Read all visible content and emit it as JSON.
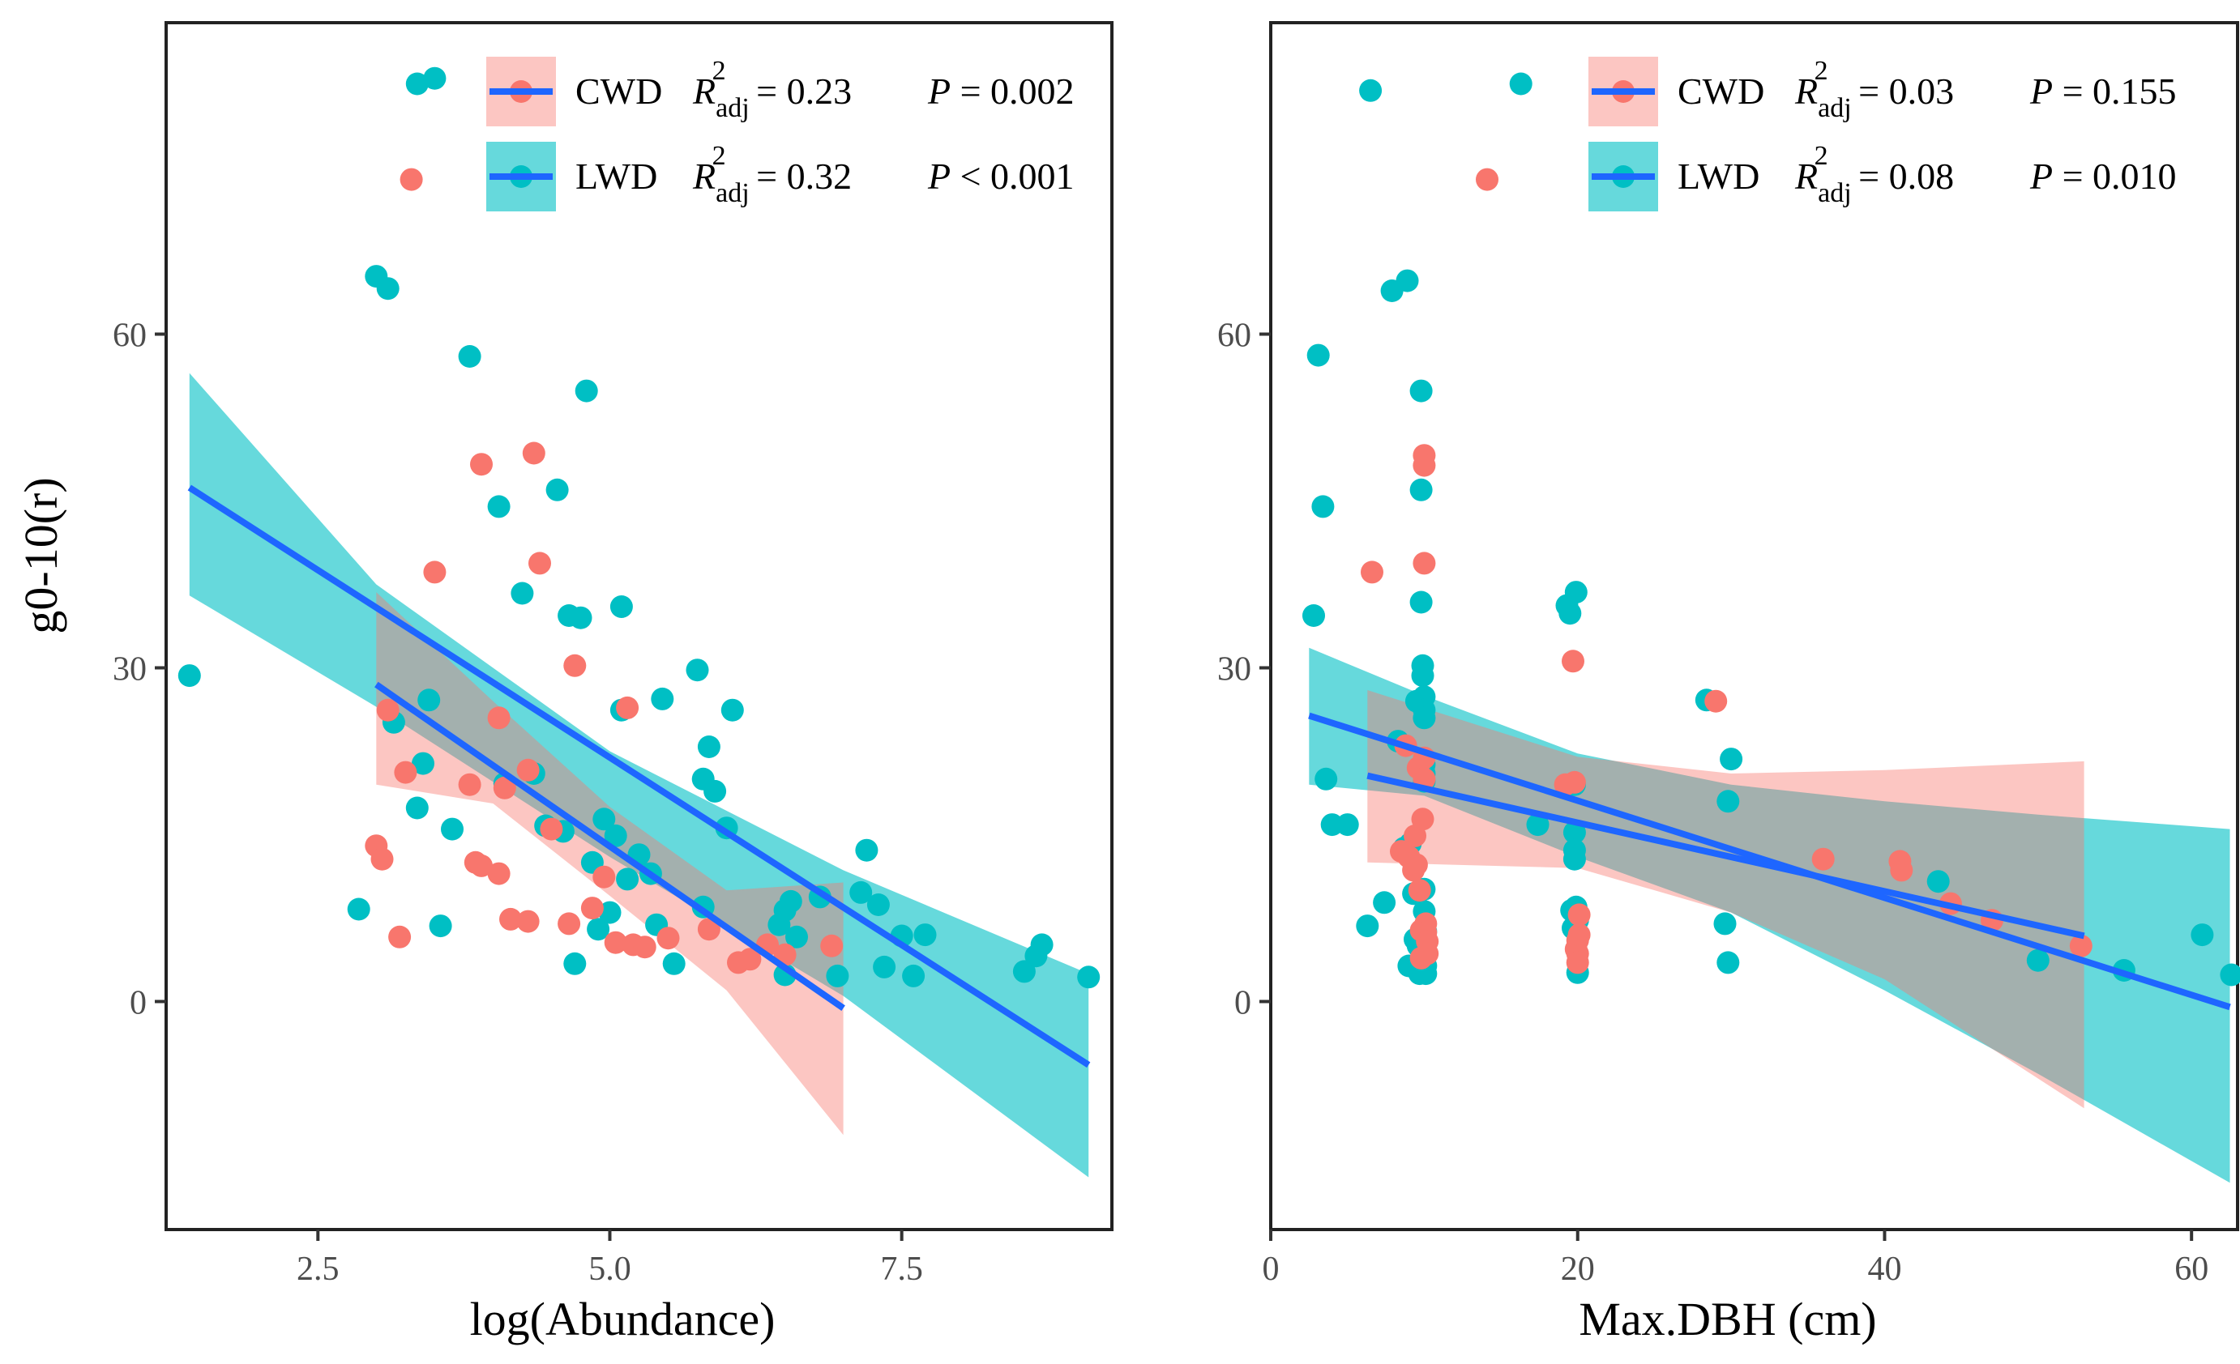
{
  "colors": {
    "cwd_points": "#F8766D",
    "lwd_points": "#00BFC4",
    "cwd_band": "#F8766D",
    "lwd_band": "#00BFC4",
    "fit_line": "#1E66FF",
    "frame": "#222222"
  },
  "y_axis_title": "g0-10(r)",
  "chart_data": [
    {
      "type": "scatter",
      "panel": "left",
      "xlabel": "log(Abundance)",
      "ylabel": "g0-10(r)",
      "xlim": [
        1.2,
        9.3
      ],
      "ylim": [
        -20.5,
        88
      ],
      "x_ticks": [
        2.5,
        5.0,
        7.5
      ],
      "x_tick_labels": [
        "2.5",
        "5.0",
        "7.5"
      ],
      "y_ticks": [
        0,
        30,
        60
      ],
      "y_tick_labels": [
        "0",
        "30",
        "60"
      ],
      "grid": false,
      "legend_position": "top-right",
      "legend": [
        {
          "key": "CWD",
          "label": "CWD",
          "r2_prefix": "R",
          "r2_sub": "adj",
          "r2_sup": "2",
          "r2_value": " = 0.23",
          "p_symbol": "P",
          "p_value": " = 0.002"
        },
        {
          "key": "LWD",
          "label": "LWD",
          "r2_prefix": "R",
          "r2_sub": "adj",
          "r2_sup": "2",
          "r2_value": " = 0.32",
          "p_symbol": "P",
          "p_value": " < 0.001"
        }
      ],
      "series": [
        {
          "name": "LWD",
          "fit": {
            "x": [
              1.4,
              9.1
            ],
            "y": [
              46.2,
              -5.7
            ]
          },
          "band": {
            "x": [
              1.4,
              3.0,
              5.0,
              7.0,
              9.1
            ],
            "upper": [
              56.5,
              37.5,
              22.5,
              11.8,
              2.5
            ],
            "lower": [
              36.5,
              26.5,
              13.0,
              0.5,
              -15.8
            ]
          },
          "points": [
            [
              1.4,
              29.3
            ],
            [
              2.85,
              8.3
            ],
            [
              3.0,
              65.2
            ],
            [
              3.1,
              64.1
            ],
            [
              3.15,
              25.1
            ],
            [
              3.35,
              82.5
            ],
            [
              3.5,
              83.0
            ],
            [
              3.35,
              17.4
            ],
            [
              3.4,
              21.4
            ],
            [
              3.45,
              27.1
            ],
            [
              3.55,
              6.8
            ],
            [
              3.65,
              15.5
            ],
            [
              3.8,
              58.0
            ],
            [
              4.05,
              44.5
            ],
            [
              4.1,
              19.6
            ],
            [
              4.25,
              36.7
            ],
            [
              4.35,
              20.5
            ],
            [
              4.45,
              15.8
            ],
            [
              4.55,
              46.0
            ],
            [
              4.6,
              15.3
            ],
            [
              4.65,
              34.7
            ],
            [
              4.7,
              3.4
            ],
            [
              4.75,
              34.5
            ],
            [
              4.8,
              54.9
            ],
            [
              4.85,
              12.5
            ],
            [
              4.9,
              6.5
            ],
            [
              4.95,
              16.4
            ],
            [
              5.0,
              8.0
            ],
            [
              5.05,
              14.9
            ],
            [
              5.1,
              35.5
            ],
            [
              5.1,
              26.2
            ],
            [
              5.15,
              11.0
            ],
            [
              5.25,
              13.2
            ],
            [
              5.35,
              11.5
            ],
            [
              5.4,
              6.9
            ],
            [
              5.45,
              27.2
            ],
            [
              5.55,
              3.4
            ],
            [
              5.75,
              29.8
            ],
            [
              5.8,
              8.5
            ],
            [
              5.8,
              20.0
            ],
            [
              5.85,
              22.9
            ],
            [
              5.9,
              18.9
            ],
            [
              6.0,
              15.6
            ],
            [
              6.05,
              26.2
            ],
            [
              6.45,
              6.9
            ],
            [
              6.5,
              8.2
            ],
            [
              6.5,
              2.4
            ],
            [
              6.55,
              9.0
            ],
            [
              6.6,
              5.8
            ],
            [
              6.8,
              9.4
            ],
            [
              6.95,
              2.3
            ],
            [
              7.15,
              9.8
            ],
            [
              7.2,
              13.6
            ],
            [
              7.3,
              8.7
            ],
            [
              7.35,
              3.1
            ],
            [
              7.5,
              5.9
            ],
            [
              7.6,
              2.3
            ],
            [
              7.7,
              6.0
            ],
            [
              8.55,
              2.7
            ],
            [
              8.65,
              4.1
            ],
            [
              8.7,
              5.1
            ],
            [
              9.1,
              2.2
            ]
          ]
        },
        {
          "name": "CWD",
          "fit": {
            "x": [
              3.0,
              7.0
            ],
            "y": [
              28.5,
              -0.6
            ]
          },
          "band": {
            "x": [
              3.0,
              4.0,
              5.0,
              6.0,
              7.0
            ],
            "upper": [
              36.8,
              27.0,
              17.5,
              10.0,
              10.7
            ],
            "lower": [
              19.5,
              17.8,
              9.5,
              1.0,
              -12.0
            ]
          },
          "points": [
            [
              3.0,
              14.0
            ],
            [
              3.05,
              12.8
            ],
            [
              3.1,
              26.2
            ],
            [
              3.2,
              5.8
            ],
            [
              3.25,
              20.6
            ],
            [
              3.3,
              73.9
            ],
            [
              3.5,
              38.6
            ],
            [
              3.8,
              19.5
            ],
            [
              3.85,
              12.5
            ],
            [
              3.9,
              48.3
            ],
            [
              3.9,
              12.2
            ],
            [
              4.05,
              11.5
            ],
            [
              4.05,
              25.5
            ],
            [
              4.1,
              19.2
            ],
            [
              4.15,
              7.4
            ],
            [
              4.3,
              7.2
            ],
            [
              4.3,
              20.8
            ],
            [
              4.35,
              49.3
            ],
            [
              4.4,
              39.4
            ],
            [
              4.5,
              15.5
            ],
            [
              4.65,
              7.0
            ],
            [
              4.7,
              30.2
            ],
            [
              4.85,
              8.4
            ],
            [
              4.95,
              11.2
            ],
            [
              5.05,
              5.3
            ],
            [
              5.15,
              26.4
            ],
            [
              5.2,
              5.1
            ],
            [
              5.3,
              4.9
            ],
            [
              5.5,
              5.7
            ],
            [
              5.85,
              6.5
            ],
            [
              6.1,
              3.5
            ],
            [
              6.2,
              3.8
            ],
            [
              6.35,
              5.1
            ],
            [
              6.5,
              4.2
            ],
            [
              6.9,
              5.0
            ]
          ]
        }
      ]
    },
    {
      "type": "scatter",
      "panel": "right",
      "xlabel": "Max.DBH (cm)",
      "ylabel": "g0-10(r)",
      "xlim": [
        0,
        63
      ],
      "ylim": [
        -20.5,
        88
      ],
      "x_ticks": [
        0,
        20,
        40,
        60
      ],
      "x_tick_labels": [
        "0",
        "20",
        "40",
        "60"
      ],
      "y_ticks": [
        0,
        30,
        60
      ],
      "y_tick_labels": [
        "0",
        "30",
        "60"
      ],
      "grid": false,
      "legend_position": "top-right",
      "legend": [
        {
          "key": "CWD",
          "label": "CWD",
          "r2_prefix": "R",
          "r2_sub": "adj",
          "r2_sup": "2",
          "r2_value": " = 0.03",
          "p_symbol": "P",
          "p_value": " = 0.155"
        },
        {
          "key": "LWD",
          "label": "LWD",
          "r2_prefix": "R",
          "r2_sub": "adj",
          "r2_sup": "2",
          "r2_value": " = 0.08",
          "p_symbol": "P",
          "p_value": " = 0.010"
        }
      ],
      "series": [
        {
          "name": "LWD",
          "fit": {
            "x": [
              2.5,
              62.5
            ],
            "y": [
              25.7,
              -0.5
            ]
          },
          "band": {
            "x": [
              2.5,
              10.0,
              20.0,
              30.0,
              40.0,
              50.0,
              62.5
            ],
            "upper": [
              31.8,
              27.5,
              22.3,
              19.5,
              18.0,
              16.8,
              15.5
            ],
            "lower": [
              19.5,
              18.5,
              13.0,
              8.0,
              1.0,
              -6.5,
              -16.3
            ]
          },
          "points": [
            [
              2.8,
              34.7
            ],
            [
              3.1,
              58.1
            ],
            [
              3.4,
              44.5
            ],
            [
              3.6,
              20.0
            ],
            [
              4.0,
              15.9
            ],
            [
              5.0,
              15.9
            ],
            [
              6.3,
              6.8
            ],
            [
              6.5,
              81.9
            ],
            [
              7.4,
              8.9
            ],
            [
              7.9,
              63.9
            ],
            [
              8.3,
              23.4
            ],
            [
              8.7,
              13.8
            ],
            [
              8.9,
              64.8
            ],
            [
              9.0,
              3.2
            ],
            [
              9.1,
              14.2
            ],
            [
              9.3,
              9.7
            ],
            [
              9.4,
              5.6
            ],
            [
              9.5,
              27.0
            ],
            [
              9.6,
              5.0
            ],
            [
              9.7,
              2.5
            ],
            [
              9.8,
              54.9
            ],
            [
              9.8,
              46.0
            ],
            [
              9.8,
              35.9
            ],
            [
              9.9,
              30.2
            ],
            [
              9.9,
              29.3
            ],
            [
              10.0,
              27.4
            ],
            [
              10.0,
              26.2
            ],
            [
              10.0,
              25.5
            ],
            [
              10.0,
              21.3
            ],
            [
              10.0,
              20.5
            ],
            [
              10.0,
              19.8
            ],
            [
              10.0,
              10.1
            ],
            [
              10.0,
              8.1
            ],
            [
              10.1,
              6.3
            ],
            [
              10.1,
              4.2
            ],
            [
              10.1,
              3.2
            ],
            [
              10.1,
              2.5
            ],
            [
              16.3,
              82.5
            ],
            [
              17.4,
              15.9
            ],
            [
              19.3,
              35.6
            ],
            [
              19.5,
              34.9
            ],
            [
              19.6,
              8.2
            ],
            [
              19.7,
              6.6
            ],
            [
              19.8,
              19.5
            ],
            [
              19.8,
              15.2
            ],
            [
              19.8,
              13.6
            ],
            [
              19.8,
              12.8
            ],
            [
              19.9,
              36.8
            ],
            [
              19.9,
              8.5
            ],
            [
              20.0,
              7.3
            ],
            [
              20.0,
              2.6
            ],
            [
              28.4,
              27.1
            ],
            [
              29.6,
              7.0
            ],
            [
              29.8,
              18.0
            ],
            [
              29.8,
              3.5
            ],
            [
              30.0,
              21.8
            ],
            [
              43.5,
              10.8
            ],
            [
              50.0,
              3.7
            ],
            [
              55.6,
              2.8
            ],
            [
              60.7,
              6.0
            ],
            [
              62.6,
              2.4
            ]
          ]
        },
        {
          "name": "CWD",
          "fit": {
            "x": [
              6.3,
              53.0
            ],
            "y": [
              20.3,
              5.9
            ]
          },
          "band": {
            "x": [
              6.3,
              20.0,
              30.0,
              40.0,
              53.0
            ],
            "upper": [
              28.0,
              22.0,
              20.5,
              20.8,
              21.6
            ],
            "lower": [
              12.5,
              12.0,
              8.0,
              2.0,
              -9.6
            ]
          },
          "points": [
            [
              6.6,
              38.6
            ],
            [
              8.5,
              13.5
            ],
            [
              8.8,
              23.0
            ],
            [
              9.0,
              13.0
            ],
            [
              9.3,
              11.8
            ],
            [
              9.4,
              14.9
            ],
            [
              9.5,
              12.3
            ],
            [
              9.6,
              21.0
            ],
            [
              9.7,
              10.0
            ],
            [
              9.8,
              6.4
            ],
            [
              9.8,
              3.9
            ],
            [
              9.9,
              16.4
            ],
            [
              10.0,
              49.1
            ],
            [
              10.0,
              48.2
            ],
            [
              10.0,
              39.4
            ],
            [
              10.0,
              21.9
            ],
            [
              10.0,
              20.0
            ],
            [
              10.1,
              7.0
            ],
            [
              10.1,
              6.2
            ],
            [
              10.2,
              5.4
            ],
            [
              10.2,
              4.3
            ],
            [
              14.1,
              73.9
            ],
            [
              19.2,
              19.5
            ],
            [
              19.7,
              30.6
            ],
            [
              19.8,
              19.7
            ],
            [
              19.9,
              4.7
            ],
            [
              20.0,
              5.5
            ],
            [
              20.0,
              4.3
            ],
            [
              20.0,
              3.5
            ],
            [
              20.1,
              6.0
            ],
            [
              20.1,
              7.8
            ],
            [
              29.0,
              27.0
            ],
            [
              36.0,
              12.8
            ],
            [
              41.0,
              12.6
            ],
            [
              41.1,
              11.8
            ],
            [
              44.3,
              8.8
            ],
            [
              47.0,
              7.3
            ],
            [
              52.8,
              5.0
            ]
          ]
        }
      ]
    }
  ]
}
